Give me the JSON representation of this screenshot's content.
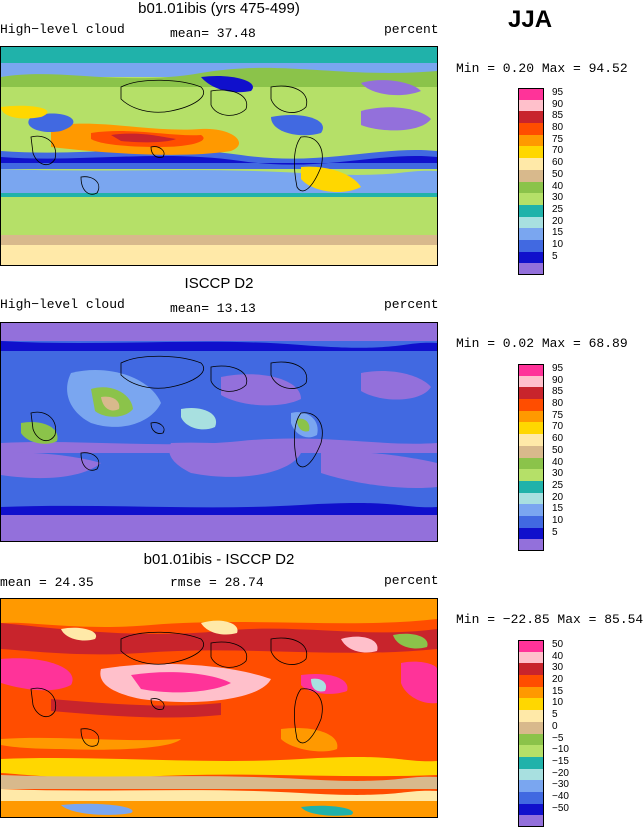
{
  "season": "JJA",
  "palette_abs": [
    "#ff3399",
    "#ffc0cb",
    "#c8242c",
    "#ff4d00",
    "#ff9900",
    "#ffd700",
    "#ffe9a8",
    "#d8b98c",
    "#8bc34a",
    "#b5e068",
    "#20b2aa",
    "#a8e0e0",
    "#7aa6f0",
    "#4169e1",
    "#1010cc",
    "#9370db"
  ],
  "palette_diff": [
    "#ff3399",
    "#ffc0cb",
    "#c8242c",
    "#ff4d00",
    "#ff9900",
    "#ffd700",
    "#ffe9a8",
    "#d8b98c",
    "#8bc34a",
    "#b5e068",
    "#20b2aa",
    "#a8e0e0",
    "#7aa6f0",
    "#4169e1",
    "#1010cc",
    "#9370db"
  ],
  "panels": [
    {
      "title": "b01.01ibis (yrs 475-499)",
      "left_label": "High−level cloud",
      "mean_label": "mean=  37.48",
      "right_label": "percent",
      "minmax": "Min =   0.20 Max =  94.52",
      "colorbar_labels": [
        "95",
        "90",
        "85",
        "80",
        "75",
        "70",
        "60",
        "50",
        "40",
        "30",
        "25",
        "20",
        "15",
        "10",
        "5"
      ]
    },
    {
      "title": "ISCCP D2",
      "left_label": "High−level cloud",
      "mean_label": "mean=  13.13",
      "right_label": "percent",
      "minmax": "Min =   0.02 Max =  68.89",
      "colorbar_labels": [
        "95",
        "90",
        "85",
        "80",
        "75",
        "70",
        "60",
        "50",
        "40",
        "30",
        "25",
        "20",
        "15",
        "10",
        "5"
      ]
    },
    {
      "title": "b01.01ibis - ISCCP D2",
      "left_label": "mean =  24.35",
      "mean_label": "rmse =  28.74",
      "right_label": "percent",
      "minmax": "Min = −22.85 Max =  85.54",
      "colorbar_labels": [
        "50",
        "40",
        "30",
        "20",
        "15",
        "10",
        "5",
        "0",
        "−5",
        "−10",
        "−15",
        "−20",
        "−30",
        "−40",
        "−50"
      ]
    }
  ]
}
